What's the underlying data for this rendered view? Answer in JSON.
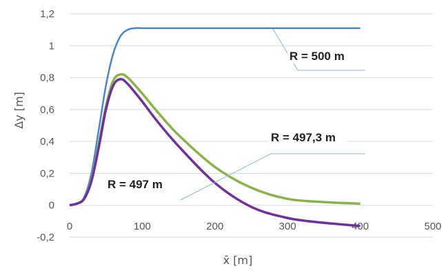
{
  "chart_data": {
    "type": "line",
    "xlabel": "x̄ [m]",
    "ylabel": "Δy [m]",
    "xlim": [
      0,
      500
    ],
    "ylim": [
      -0.2,
      1.2
    ],
    "x_ticks": [
      "0",
      "100",
      "200",
      "300",
      "400",
      "500"
    ],
    "y_ticks": [
      "-0,2",
      "0",
      "0,2",
      "0,4",
      "0,6",
      "0,8",
      "1",
      "1,2"
    ],
    "grid": "horizontal",
    "legend": "none",
    "series": [
      {
        "name": "R = 500 m",
        "color": "#4a86c8",
        "x": [
          0,
          10,
          20,
          30,
          40,
          50,
          60,
          70,
          80,
          90,
          100,
          150,
          200,
          250,
          300,
          350,
          400
        ],
        "y": [
          0,
          0.01,
          0.05,
          0.2,
          0.47,
          0.75,
          0.95,
          1.06,
          1.1,
          1.11,
          1.11,
          1.11,
          1.11,
          1.11,
          1.11,
          1.11,
          1.11
        ]
      },
      {
        "name": "R = 497,3 m",
        "color": "#8ab44a",
        "x": [
          0,
          10,
          20,
          30,
          40,
          50,
          60,
          70,
          80,
          100,
          120,
          150,
          200,
          250,
          300,
          350,
          400
        ],
        "y": [
          0,
          0.01,
          0.04,
          0.16,
          0.38,
          0.62,
          0.78,
          0.82,
          0.8,
          0.7,
          0.59,
          0.44,
          0.24,
          0.11,
          0.04,
          0.02,
          0.01
        ]
      },
      {
        "name": "R = 497 m",
        "color": "#7030a0",
        "x": [
          0,
          10,
          20,
          30,
          40,
          50,
          60,
          70,
          80,
          100,
          120,
          150,
          200,
          250,
          300,
          350,
          400
        ],
        "y": [
          0,
          0.01,
          0.04,
          0.15,
          0.36,
          0.6,
          0.75,
          0.79,
          0.76,
          0.65,
          0.53,
          0.37,
          0.14,
          -0.01,
          -0.08,
          -0.11,
          -0.13
        ]
      }
    ],
    "annotations": [
      {
        "text": "R = 500 m",
        "series": 0,
        "x": 280,
        "y": 1.11
      },
      {
        "text": "R = 497,3 m",
        "series": 1,
        "x": 150,
        "y": 0.44
      },
      {
        "text": "R = 497 m",
        "series": 2,
        "x": 160,
        "y": 0.05
      }
    ]
  }
}
